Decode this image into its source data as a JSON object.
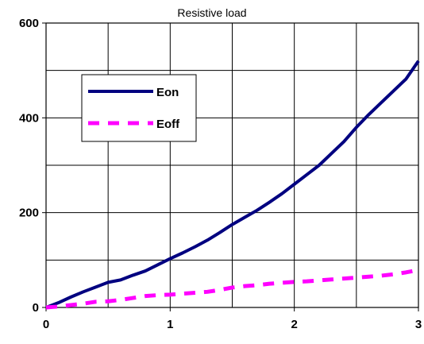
{
  "chart_data": {
    "type": "line",
    "title": "Resistive load",
    "xlabel": "",
    "ylabel": "",
    "xlim": [
      0,
      3
    ],
    "ylim": [
      0,
      600
    ],
    "x_ticks": [
      0,
      1,
      2,
      3
    ],
    "y_ticks": [
      0,
      200,
      400,
      600
    ],
    "grid": true,
    "legend_position": "upper-left inside plot",
    "series": [
      {
        "name": "Eon",
        "color": "#000080",
        "style": "solid",
        "x": [
          0,
          0.1,
          0.2,
          0.3,
          0.4,
          0.5,
          0.6,
          0.7,
          0.8,
          0.9,
          1.0,
          1.1,
          1.2,
          1.3,
          1.4,
          1.5,
          1.6,
          1.7,
          1.8,
          1.9,
          2.0,
          2.1,
          2.2,
          2.3,
          2.4,
          2.5,
          2.6,
          2.7,
          2.8,
          2.9,
          3.0
        ],
        "y": [
          0,
          10,
          22,
          33,
          43,
          53,
          58,
          68,
          77,
          90,
          103,
          115,
          128,
          142,
          158,
          175,
          190,
          205,
          222,
          240,
          260,
          280,
          300,
          325,
          350,
          380,
          407,
          432,
          457,
          482,
          520
        ]
      },
      {
        "name": "Eoff",
        "color": "#ff00ff",
        "style": "dashed",
        "x": [
          0,
          0.1,
          0.2,
          0.3,
          0.4,
          0.5,
          0.6,
          0.7,
          0.8,
          0.9,
          1.0,
          1.1,
          1.2,
          1.3,
          1.4,
          1.5,
          1.6,
          1.7,
          1.8,
          1.9,
          2.0,
          2.1,
          2.2,
          2.3,
          2.4,
          2.5,
          2.6,
          2.7,
          2.8,
          2.9,
          3.0
        ],
        "y": [
          0,
          2,
          5,
          8,
          12,
          13,
          16,
          20,
          24,
          26,
          27,
          29,
          31,
          33,
          37,
          42,
          45,
          47,
          50,
          52,
          54,
          55,
          57,
          59,
          61,
          63,
          65,
          67,
          70,
          74,
          79
        ]
      }
    ]
  }
}
